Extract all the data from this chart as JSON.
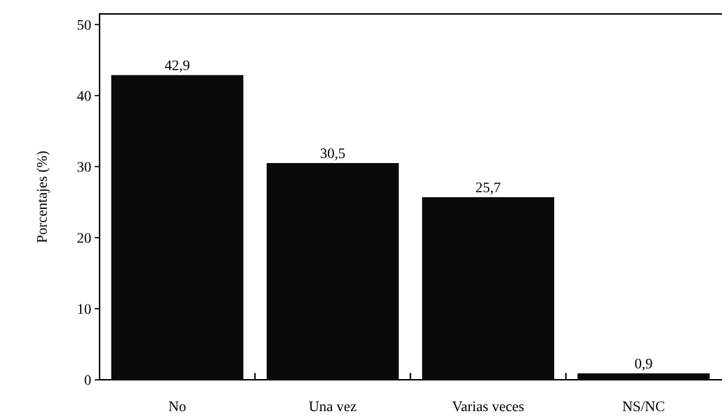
{
  "chart_data": {
    "type": "bar",
    "ylabel": "Porcentajes (%)",
    "categories": [
      "No",
      "Una vez",
      "Varias veces",
      "NS/NC"
    ],
    "values": [
      42.9,
      30.5,
      25.7,
      0.9
    ],
    "value_labels": [
      "42,9",
      "30,5",
      "25,7",
      "0,9"
    ],
    "color": "#0a0a0a",
    "ylim": [
      0,
      51.5
    ],
    "yticks": [
      0,
      10,
      20,
      30,
      40,
      50
    ],
    "grid": false
  }
}
